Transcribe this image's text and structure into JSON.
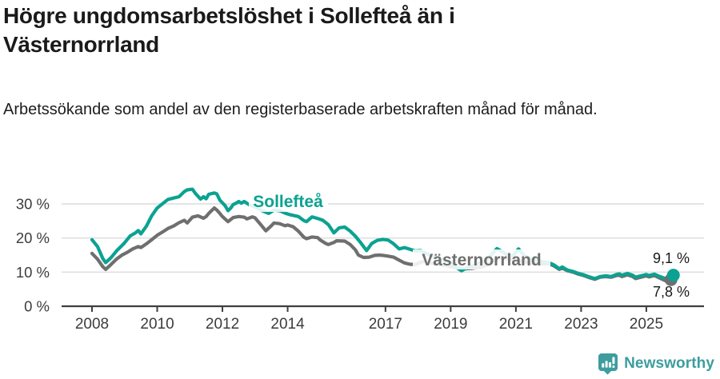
{
  "header": {
    "title": "Högre ungdomsarbetslöshet i Sollefteå än i Västernorrland",
    "subtitle": "Arbetssökande som andel av den registerbaserade arbetskraften månad för månad."
  },
  "footer": {
    "brand": "Newsworthy"
  },
  "colors": {
    "solleftea": "#0ba291",
    "vasternorrland": "#6f6f6f",
    "brand": "#3d9d9e",
    "grid": "#dcdcdc",
    "axis": "#3f3f3f",
    "tick_text": "#3c3c3c",
    "value_text": "#1a1a1a"
  },
  "chart_data": {
    "type": "line",
    "title": "Högre ungdomsarbetslöshet i Sollefteå än i Västernorrland",
    "xlabel": "",
    "ylabel": "Arbetssökande som andel av den registerbaserade arbetskraften",
    "x_unit": "år (månadsdata)",
    "y_unit": "%",
    "x_range": [
      2008,
      2025.83
    ],
    "y_range": [
      0,
      36
    ],
    "grid": "horizontal",
    "x_ticks": [
      2008,
      2010,
      2012,
      2014,
      2017,
      2019,
      2021,
      2023,
      2025
    ],
    "y_ticks": [
      {
        "value": 0,
        "label": "0 %"
      },
      {
        "value": 10,
        "label": "10 %"
      },
      {
        "value": 20,
        "label": "20 %"
      },
      {
        "value": 30,
        "label": "30 %"
      }
    ],
    "series": [
      {
        "id": "solleftea",
        "name": "Sollefteå",
        "color": "#0ba291",
        "end_label": "9,1 %",
        "end_value": 9.1,
        "points": [
          [
            2008.0,
            19.5
          ],
          [
            2008.17,
            17.5
          ],
          [
            2008.33,
            14.0
          ],
          [
            2008.42,
            12.8
          ],
          [
            2008.58,
            14.2
          ],
          [
            2008.75,
            16.2
          ],
          [
            2008.92,
            17.8
          ],
          [
            2009.0,
            18.6
          ],
          [
            2009.17,
            20.6
          ],
          [
            2009.33,
            21.5
          ],
          [
            2009.42,
            22.2
          ],
          [
            2009.5,
            21.2
          ],
          [
            2009.67,
            23.5
          ],
          [
            2009.83,
            26.5
          ],
          [
            2010.0,
            28.8
          ],
          [
            2010.17,
            30.1
          ],
          [
            2010.33,
            31.3
          ],
          [
            2010.5,
            31.7
          ],
          [
            2010.67,
            32.1
          ],
          [
            2010.83,
            33.6
          ],
          [
            2010.92,
            34.1
          ],
          [
            2011.08,
            34.3
          ],
          [
            2011.17,
            33.1
          ],
          [
            2011.33,
            31.4
          ],
          [
            2011.42,
            32.1
          ],
          [
            2011.5,
            31.5
          ],
          [
            2011.58,
            32.8
          ],
          [
            2011.75,
            33.2
          ],
          [
            2011.83,
            32.9
          ],
          [
            2011.92,
            31.1
          ],
          [
            2012.08,
            29.5
          ],
          [
            2012.17,
            28.0
          ],
          [
            2012.25,
            28.7
          ],
          [
            2012.33,
            29.8
          ],
          [
            2012.42,
            30.2
          ],
          [
            2012.5,
            30.7
          ],
          [
            2012.58,
            30.2
          ],
          [
            2012.67,
            30.7
          ],
          [
            2012.83,
            29.7
          ],
          [
            2013.0,
            29.1
          ],
          [
            2013.17,
            28.2
          ],
          [
            2013.42,
            27.2
          ],
          [
            2013.58,
            28.2
          ],
          [
            2013.75,
            28.0
          ],
          [
            2013.92,
            27.3
          ],
          [
            2014.08,
            26.8
          ],
          [
            2014.33,
            26.3
          ],
          [
            2014.5,
            25.1
          ],
          [
            2014.58,
            24.8
          ],
          [
            2014.75,
            26.2
          ],
          [
            2014.92,
            25.7
          ],
          [
            2015.08,
            25.2
          ],
          [
            2015.25,
            23.9
          ],
          [
            2015.42,
            21.5
          ],
          [
            2015.58,
            23.0
          ],
          [
            2015.75,
            23.2
          ],
          [
            2015.92,
            22.0
          ],
          [
            2016.08,
            20.5
          ],
          [
            2016.25,
            18.5
          ],
          [
            2016.42,
            16.3
          ],
          [
            2016.58,
            18.4
          ],
          [
            2016.75,
            19.3
          ],
          [
            2016.92,
            19.6
          ],
          [
            2017.08,
            19.4
          ],
          [
            2017.25,
            18.3
          ],
          [
            2017.42,
            16.8
          ],
          [
            2017.58,
            17.2
          ],
          [
            2017.75,
            16.7
          ],
          [
            2017.92,
            16.2
          ],
          [
            2018.08,
            16.3
          ],
          [
            2018.25,
            15.4
          ],
          [
            2018.5,
            14.6
          ],
          [
            2018.75,
            13.8
          ],
          [
            2019.0,
            12.7
          ],
          [
            2019.17,
            11.4
          ],
          [
            2019.33,
            10.4
          ],
          [
            2019.5,
            11.3
          ],
          [
            2019.75,
            12.2
          ],
          [
            2019.92,
            12.8
          ],
          [
            2020.08,
            13.3
          ],
          [
            2020.25,
            15.1
          ],
          [
            2020.42,
            16.9
          ],
          [
            2020.58,
            16.0
          ],
          [
            2020.75,
            14.9
          ],
          [
            2020.92,
            14.8
          ],
          [
            2021.08,
            16.8
          ],
          [
            2021.25,
            14.9
          ],
          [
            2021.42,
            14.0
          ],
          [
            2021.58,
            13.6
          ],
          [
            2021.75,
            13.2
          ],
          [
            2021.92,
            12.9
          ],
          [
            2022.08,
            12.5
          ],
          [
            2022.17,
            12.1
          ],
          [
            2022.33,
            11.0
          ],
          [
            2022.42,
            11.5
          ],
          [
            2022.58,
            10.6
          ],
          [
            2022.75,
            10.2
          ],
          [
            2022.92,
            9.6
          ],
          [
            2023.08,
            9.2
          ],
          [
            2023.25,
            8.6
          ],
          [
            2023.42,
            8.1
          ],
          [
            2023.58,
            8.7
          ],
          [
            2023.75,
            8.9
          ],
          [
            2023.92,
            8.7
          ],
          [
            2024.08,
            9.3
          ],
          [
            2024.17,
            9.5
          ],
          [
            2024.25,
            9.1
          ],
          [
            2024.42,
            9.6
          ],
          [
            2024.58,
            9.1
          ],
          [
            2024.67,
            8.5
          ],
          [
            2024.83,
            8.9
          ],
          [
            2025.0,
            9.3
          ],
          [
            2025.08,
            9.0
          ],
          [
            2025.25,
            9.4
          ],
          [
            2025.42,
            8.7
          ],
          [
            2025.58,
            8.1
          ],
          [
            2025.75,
            8.5
          ],
          [
            2025.83,
            9.1
          ]
        ]
      },
      {
        "id": "vasternorrland",
        "name": "Västernorrland",
        "color": "#6f6f6f",
        "end_label": "7,8 %",
        "end_value": 7.8,
        "points": [
          [
            2008.0,
            15.5
          ],
          [
            2008.17,
            13.8
          ],
          [
            2008.33,
            11.6
          ],
          [
            2008.42,
            10.8
          ],
          [
            2008.58,
            12.2
          ],
          [
            2008.75,
            13.8
          ],
          [
            2008.92,
            15.0
          ],
          [
            2009.08,
            15.8
          ],
          [
            2009.25,
            16.8
          ],
          [
            2009.42,
            17.5
          ],
          [
            2009.5,
            17.2
          ],
          [
            2009.67,
            18.3
          ],
          [
            2009.83,
            19.5
          ],
          [
            2010.0,
            20.8
          ],
          [
            2010.17,
            21.8
          ],
          [
            2010.33,
            22.8
          ],
          [
            2010.5,
            23.5
          ],
          [
            2010.67,
            24.5
          ],
          [
            2010.83,
            25.2
          ],
          [
            2010.92,
            24.4
          ],
          [
            2011.08,
            26.1
          ],
          [
            2011.25,
            26.5
          ],
          [
            2011.42,
            25.8
          ],
          [
            2011.5,
            26.3
          ],
          [
            2011.58,
            27.2
          ],
          [
            2011.75,
            28.8
          ],
          [
            2011.83,
            28.2
          ],
          [
            2011.92,
            27.2
          ],
          [
            2012.0,
            26.3
          ],
          [
            2012.17,
            24.8
          ],
          [
            2012.33,
            26.0
          ],
          [
            2012.5,
            26.3
          ],
          [
            2012.67,
            26.1
          ],
          [
            2012.75,
            25.6
          ],
          [
            2012.92,
            26.2
          ],
          [
            2013.0,
            25.9
          ],
          [
            2013.17,
            24.0
          ],
          [
            2013.33,
            22.1
          ],
          [
            2013.5,
            23.6
          ],
          [
            2013.58,
            24.4
          ],
          [
            2013.75,
            24.2
          ],
          [
            2013.92,
            23.6
          ],
          [
            2014.0,
            23.8
          ],
          [
            2014.17,
            23.3
          ],
          [
            2014.33,
            22.0
          ],
          [
            2014.5,
            20.2
          ],
          [
            2014.58,
            19.8
          ],
          [
            2014.75,
            20.3
          ],
          [
            2014.92,
            20.1
          ],
          [
            2015.0,
            19.4
          ],
          [
            2015.17,
            18.4
          ],
          [
            2015.25,
            18.1
          ],
          [
            2015.42,
            18.7
          ],
          [
            2015.5,
            19.2
          ],
          [
            2015.75,
            19.1
          ],
          [
            2015.92,
            18.1
          ],
          [
            2016.08,
            16.5
          ],
          [
            2016.17,
            15.0
          ],
          [
            2016.33,
            14.3
          ],
          [
            2016.5,
            14.4
          ],
          [
            2016.67,
            14.9
          ],
          [
            2016.83,
            15.0
          ],
          [
            2017.0,
            14.8
          ],
          [
            2017.25,
            14.4
          ],
          [
            2017.42,
            13.5
          ],
          [
            2017.58,
            12.7
          ],
          [
            2017.75,
            12.3
          ],
          [
            2017.92,
            12.2
          ],
          [
            2018.08,
            12.9
          ],
          [
            2018.17,
            13.1
          ],
          [
            2018.42,
            12.6
          ],
          [
            2018.67,
            12.2
          ],
          [
            2018.92,
            11.8
          ],
          [
            2019.17,
            11.3
          ],
          [
            2019.42,
            11.0
          ],
          [
            2019.67,
            11.1
          ],
          [
            2019.92,
            11.5
          ],
          [
            2020.08,
            11.9
          ],
          [
            2020.33,
            13.4
          ],
          [
            2020.5,
            14.3
          ],
          [
            2020.75,
            13.9
          ],
          [
            2021.0,
            13.5
          ],
          [
            2021.25,
            13.0
          ],
          [
            2021.5,
            12.6
          ],
          [
            2021.75,
            12.3
          ],
          [
            2022.0,
            12.5
          ],
          [
            2022.17,
            11.8
          ],
          [
            2022.33,
            10.8
          ],
          [
            2022.42,
            11.2
          ],
          [
            2022.58,
            10.4
          ],
          [
            2022.75,
            10.0
          ],
          [
            2022.92,
            9.4
          ],
          [
            2023.08,
            9.0
          ],
          [
            2023.25,
            8.4
          ],
          [
            2023.42,
            7.9
          ],
          [
            2023.58,
            8.5
          ],
          [
            2023.75,
            8.7
          ],
          [
            2023.92,
            8.5
          ],
          [
            2024.08,
            9.0
          ],
          [
            2024.17,
            9.1
          ],
          [
            2024.25,
            8.7
          ],
          [
            2024.42,
            9.2
          ],
          [
            2024.58,
            8.7
          ],
          [
            2024.67,
            8.1
          ],
          [
            2024.83,
            8.5
          ],
          [
            2025.0,
            8.9
          ],
          [
            2025.08,
            8.6
          ],
          [
            2025.25,
            9.0
          ],
          [
            2025.42,
            8.2
          ],
          [
            2025.58,
            7.5
          ],
          [
            2025.75,
            7.6
          ],
          [
            2025.83,
            7.8
          ]
        ]
      }
    ],
    "legend": "inline-labels"
  }
}
